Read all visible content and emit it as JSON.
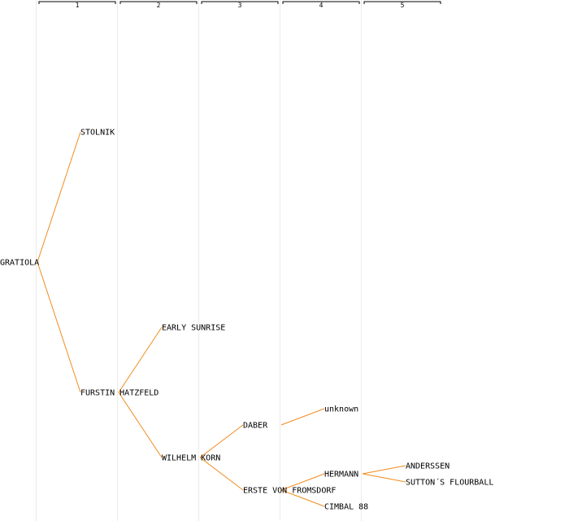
{
  "colors": {
    "edge": "#f08c1e",
    "guide": "#ebebeb",
    "bracket": "#000000"
  },
  "columns": [
    "1",
    "2",
    "3",
    "4",
    "5"
  ],
  "nodes": [
    {
      "id": "gratiola",
      "label": "GRATIOLA",
      "generation": 0
    },
    {
      "id": "stolnik",
      "label": "STOLNIK",
      "generation": 1,
      "parent": "gratiola"
    },
    {
      "id": "furstin-hatzfeld",
      "label": "FURSTIN HATZFELD",
      "generation": 1,
      "parent": "gratiola"
    },
    {
      "id": "early-sunrise",
      "label": "EARLY SUNRISE",
      "generation": 2,
      "parent": "furstin-hatzfeld"
    },
    {
      "id": "wilhelm-korn",
      "label": "WILHELM KORN",
      "generation": 2,
      "parent": "furstin-hatzfeld"
    },
    {
      "id": "daber",
      "label": "DABER",
      "generation": 3,
      "parent": "wilhelm-korn"
    },
    {
      "id": "erste-von-fromsdorf",
      "label": "ERSTE VON FROMSDORF",
      "generation": 3,
      "parent": "wilhelm-korn"
    },
    {
      "id": "unknown",
      "label": "unknown",
      "generation": 4,
      "parent": "daber"
    },
    {
      "id": "hermann",
      "label": "HERMANN",
      "generation": 4,
      "parent": "erste-von-fromsdorf"
    },
    {
      "id": "cimbal-88",
      "label": "CIMBAL 88",
      "generation": 4,
      "parent": "erste-von-fromsdorf"
    },
    {
      "id": "anderssen",
      "label": "ANDERSSEN",
      "generation": 5,
      "parent": "hermann"
    },
    {
      "id": "suttons-flourball",
      "label": "SUTTON´S FLOURBALL",
      "generation": 5,
      "parent": "hermann"
    }
  ]
}
